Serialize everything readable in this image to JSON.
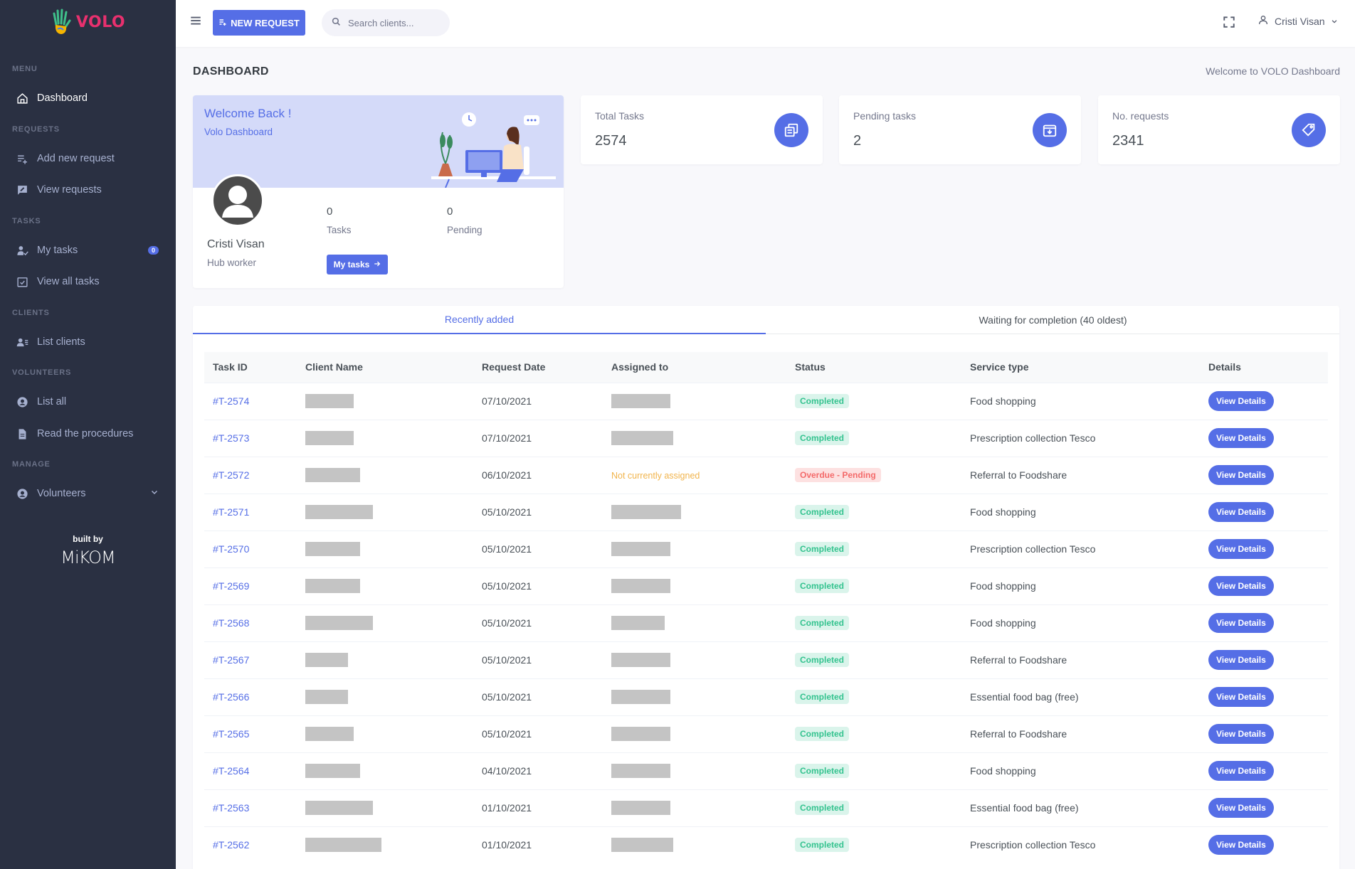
{
  "app": {
    "brand": "VOLO"
  },
  "sidebar": {
    "sections": {
      "menu": "MENU",
      "requests": "REQUESTS",
      "tasks": "TASKS",
      "clients": "CLIENTS",
      "volunteers": "VOLUNTEERS",
      "manage": "MANAGE"
    },
    "items": {
      "dashboard": "Dashboard",
      "add_request": "Add new request",
      "view_requests": "View requests",
      "my_tasks": "My tasks",
      "my_tasks_badge": "0",
      "view_all_tasks": "View all tasks",
      "list_clients": "List clients",
      "list_all": "List all",
      "read_procedures": "Read the procedures",
      "volunteers": "Volunteers"
    },
    "built_by": "built by",
    "builder_logo": "MiKOM"
  },
  "topbar": {
    "new_request": "NEW REQUEST",
    "search_placeholder": "Search clients...",
    "user_name": "Cristi Visan"
  },
  "page": {
    "title": "DASHBOARD",
    "subtitle": "Welcome to VOLO Dashboard"
  },
  "welcome": {
    "heading": "Welcome Back !",
    "sub": "Volo Dashboard",
    "name": "Cristi Visan",
    "role": "Hub worker",
    "tasks_value": "0",
    "tasks_label": "Tasks",
    "pending_value": "0",
    "pending_label": "Pending",
    "button": "My tasks"
  },
  "stats": [
    {
      "label": "Total Tasks",
      "value": "2574",
      "icon": "copy-icon"
    },
    {
      "label": "Pending tasks",
      "value": "2",
      "icon": "archive-in-icon"
    },
    {
      "label": "No. requests",
      "value": "2341",
      "icon": "tag-icon"
    }
  ],
  "tabs": {
    "recent": "Recently added",
    "waiting": "Waiting for completion (40 oldest)"
  },
  "table": {
    "headers": [
      "Task ID",
      "Client Name",
      "Request Date",
      "Assigned to",
      "Status",
      "Service type",
      "Details"
    ],
    "button_label": "View Details",
    "rows": [
      {
        "id": "#T-2574",
        "client_redacted": 0.45,
        "date": "07/10/2021",
        "assigned_redacted": 0.55,
        "status": "Completed",
        "service": "Food shopping"
      },
      {
        "id": "#T-2573",
        "client_redacted": 0.45,
        "date": "07/10/2021",
        "assigned_redacted": 0.58,
        "status": "Completed",
        "service": "Prescription collection Tesco"
      },
      {
        "id": "#T-2572",
        "client_redacted": 0.51,
        "date": "06/10/2021",
        "assigned_text": "Not currently assigned",
        "status": "Overdue - Pending",
        "service": "Referral to Foodshare"
      },
      {
        "id": "#T-2571",
        "client_redacted": 0.63,
        "date": "05/10/2021",
        "assigned_redacted": 0.65,
        "status": "Completed",
        "service": "Food shopping"
      },
      {
        "id": "#T-2570",
        "client_redacted": 0.51,
        "date": "05/10/2021",
        "assigned_redacted": 0.55,
        "status": "Completed",
        "service": "Prescription collection Tesco"
      },
      {
        "id": "#T-2569",
        "client_redacted": 0.51,
        "date": "05/10/2021",
        "assigned_redacted": 0.55,
        "status": "Completed",
        "service": "Food shopping"
      },
      {
        "id": "#T-2568",
        "client_redacted": 0.63,
        "date": "05/10/2021",
        "assigned_redacted": 0.5,
        "status": "Completed",
        "service": "Food shopping"
      },
      {
        "id": "#T-2567",
        "client_redacted": 0.4,
        "date": "05/10/2021",
        "assigned_redacted": 0.55,
        "status": "Completed",
        "service": "Referral to Foodshare"
      },
      {
        "id": "#T-2566",
        "client_redacted": 0.4,
        "date": "05/10/2021",
        "assigned_redacted": 0.55,
        "status": "Completed",
        "service": "Essential food bag (free)"
      },
      {
        "id": "#T-2565",
        "client_redacted": 0.45,
        "date": "05/10/2021",
        "assigned_redacted": 0.55,
        "status": "Completed",
        "service": "Referral to Foodshare"
      },
      {
        "id": "#T-2564",
        "client_redacted": 0.51,
        "date": "04/10/2021",
        "assigned_redacted": 0.55,
        "status": "Completed",
        "service": "Food shopping"
      },
      {
        "id": "#T-2563",
        "client_redacted": 0.63,
        "date": "01/10/2021",
        "assigned_redacted": 0.55,
        "status": "Completed",
        "service": "Essential food bag (free)"
      },
      {
        "id": "#T-2562",
        "client_redacted": 0.71,
        "date": "01/10/2021",
        "assigned_redacted": 0.58,
        "status": "Completed",
        "service": "Prescription collection Tesco"
      }
    ]
  },
  "colors": {
    "primary": "#556ee6",
    "sidebar": "#2a3042",
    "success": "#34c38f",
    "danger": "#f46a6a",
    "warning": "#f1b44c",
    "brand": "#e8306e"
  }
}
